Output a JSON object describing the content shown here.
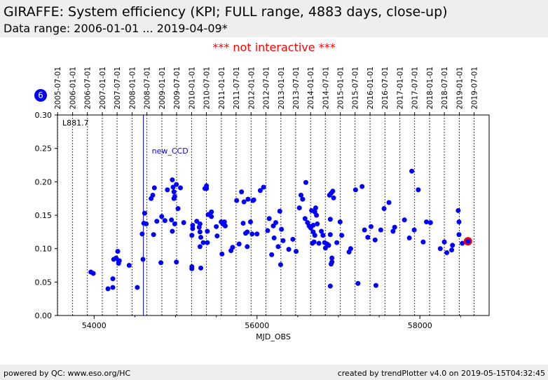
{
  "header": {
    "title": "GIRAFFE: System efficiency (KPI; FULL range, 4883 days, close-up)",
    "subtitle": "Data range: 2006-01-01 ... 2019-04-09*"
  },
  "notice": "*** not interactive ***",
  "footer": {
    "left": "powered by QC: www.eso.org/HC",
    "right": "created by trendPlotter v4.0 on 2019-05-15T04:32:45"
  },
  "colors": {
    "points": "#0000ff",
    "highlight": "#ff0000",
    "header_bg": "#eeeeee",
    "notice": "#ff0000"
  },
  "chart_data": {
    "type": "scatter",
    "xlabel": "MJD_OBS",
    "ylabel": "",
    "xlim": [
      53550,
      58850
    ],
    "ylim": [
      0.0,
      0.3
    ],
    "xticks": [
      54000,
      56000,
      58000
    ],
    "xtick_labels": [
      "54000",
      "56000",
      "58000"
    ],
    "yticks": [
      0.0,
      0.05,
      0.1,
      0.15,
      0.2,
      0.25,
      0.3
    ],
    "ytick_labels": [
      "0.00",
      "0.05",
      "0.10",
      "0.15",
      "0.20",
      "0.25",
      "0.30"
    ],
    "top_axis_dates": [
      {
        "label": "2005-07-01",
        "mjd": 53552
      },
      {
        "label": "2006-01-01",
        "mjd": 53736
      },
      {
        "label": "2006-07-01",
        "mjd": 53917
      },
      {
        "label": "2007-01-01",
        "mjd": 54101
      },
      {
        "label": "2007-07-01",
        "mjd": 54282
      },
      {
        "label": "2008-01-01",
        "mjd": 54466
      },
      {
        "label": "2008-07-01",
        "mjd": 54648
      },
      {
        "label": "2009-01-01",
        "mjd": 54832
      },
      {
        "label": "2009-07-01",
        "mjd": 55013
      },
      {
        "label": "2010-01-01",
        "mjd": 55197
      },
      {
        "label": "2010-07-01",
        "mjd": 55378
      },
      {
        "label": "2011-01-01",
        "mjd": 55562
      },
      {
        "label": "2011-07-01",
        "mjd": 55743
      },
      {
        "label": "2012-01-01",
        "mjd": 55927
      },
      {
        "label": "2012-07-01",
        "mjd": 56109
      },
      {
        "label": "2013-01-01",
        "mjd": 56293
      },
      {
        "label": "2013-07-01",
        "mjd": 56474
      },
      {
        "label": "2014-01-01",
        "mjd": 56658
      },
      {
        "label": "2014-07-01",
        "mjd": 56839
      },
      {
        "label": "2015-01-01",
        "mjd": 57023
      },
      {
        "label": "2015-07-01",
        "mjd": 57204
      },
      {
        "label": "2016-01-01",
        "mjd": 57388
      },
      {
        "label": "2016-07-01",
        "mjd": 57570
      },
      {
        "label": "2017-01-01",
        "mjd": 57754
      },
      {
        "label": "2017-07-01",
        "mjd": 57935
      },
      {
        "label": "2018-01-01",
        "mjd": 58119
      },
      {
        "label": "2018-07-01",
        "mjd": 58300
      },
      {
        "label": "2019-01-01",
        "mjd": 58484
      },
      {
        "label": "2019-07-01",
        "mjd": 58665
      }
    ],
    "corner_label": "L881.7",
    "badge": "6",
    "event": {
      "label": "new_CCD",
      "mjd": 54605
    },
    "highlight": {
      "x": 58590,
      "y": 0.111
    },
    "grid": "vertical dotted lines at top-axis dates",
    "points": [
      [
        53960,
        0.065
      ],
      [
        53990,
        0.063
      ],
      [
        54170,
        0.04
      ],
      [
        54230,
        0.042
      ],
      [
        54230,
        0.055
      ],
      [
        54240,
        0.084
      ],
      [
        54270,
        0.086
      ],
      [
        54290,
        0.096
      ],
      [
        54300,
        0.078
      ],
      [
        54300,
        0.082
      ],
      [
        54310,
        0.082
      ],
      [
        54430,
        0.075
      ],
      [
        54530,
        0.042
      ],
      [
        54590,
        0.122
      ],
      [
        54600,
        0.084
      ],
      [
        54610,
        0.138
      ],
      [
        54620,
        0.153
      ],
      [
        54640,
        0.137
      ],
      [
        54700,
        0.175
      ],
      [
        54720,
        0.18
      ],
      [
        54730,
        0.121
      ],
      [
        54740,
        0.191
      ],
      [
        54770,
        0.141
      ],
      [
        54820,
        0.079
      ],
      [
        54830,
        0.148
      ],
      [
        54870,
        0.142
      ],
      [
        54900,
        0.188
      ],
      [
        54950,
        0.143
      ],
      [
        54960,
        0.126
      ],
      [
        54960,
        0.203
      ],
      [
        54970,
        0.192
      ],
      [
        54980,
        0.175
      ],
      [
        54980,
        0.185
      ],
      [
        54990,
        0.178
      ],
      [
        54990,
        0.137
      ],
      [
        55010,
        0.196
      ],
      [
        55010,
        0.08
      ],
      [
        55030,
        0.16
      ],
      [
        55060,
        0.191
      ],
      [
        55100,
        0.139
      ],
      [
        55200,
        0.07
      ],
      [
        55200,
        0.073
      ],
      [
        55200,
        0.12
      ],
      [
        55210,
        0.13
      ],
      [
        55210,
        0.135
      ],
      [
        55260,
        0.141
      ],
      [
        55290,
        0.132
      ],
      [
        55300,
        0.137
      ],
      [
        55300,
        0.125
      ],
      [
        55300,
        0.103
      ],
      [
        55310,
        0.071
      ],
      [
        55310,
        0.117
      ],
      [
        55340,
        0.109
      ],
      [
        55360,
        0.19
      ],
      [
        55380,
        0.194
      ],
      [
        55380,
        0.19
      ],
      [
        55390,
        0.126
      ],
      [
        55390,
        0.109
      ],
      [
        55400,
        0.151
      ],
      [
        55440,
        0.155
      ],
      [
        55440,
        0.148
      ],
      [
        55500,
        0.133
      ],
      [
        55510,
        0.119
      ],
      [
        55560,
        0.14
      ],
      [
        55570,
        0.092
      ],
      [
        55580,
        0.137
      ],
      [
        55600,
        0.14
      ],
      [
        55610,
        0.134
      ],
      [
        55680,
        0.097
      ],
      [
        55700,
        0.102
      ],
      [
        55750,
        0.172
      ],
      [
        55780,
        0.107
      ],
      [
        55810,
        0.185
      ],
      [
        55830,
        0.138
      ],
      [
        55840,
        0.17
      ],
      [
        55860,
        0.123
      ],
      [
        55880,
        0.125
      ],
      [
        55880,
        0.103
      ],
      [
        55890,
        0.174
      ],
      [
        55920,
        0.14
      ],
      [
        55940,
        0.122
      ],
      [
        55950,
        0.172
      ],
      [
        55960,
        0.173
      ],
      [
        56000,
        0.122
      ],
      [
        56040,
        0.187
      ],
      [
        56080,
        0.192
      ],
      [
        56130,
        0.127
      ],
      [
        56150,
        0.145
      ],
      [
        56180,
        0.091
      ],
      [
        56200,
        0.134
      ],
      [
        56210,
        0.116
      ],
      [
        56230,
        0.139
      ],
      [
        56260,
        0.103
      ],
      [
        56280,
        0.156
      ],
      [
        56290,
        0.076
      ],
      [
        56300,
        0.129
      ],
      [
        56320,
        0.112
      ],
      [
        56390,
        0.099
      ],
      [
        56440,
        0.114
      ],
      [
        56480,
        0.096
      ],
      [
        56520,
        0.161
      ],
      [
        56540,
        0.18
      ],
      [
        56560,
        0.174
      ],
      [
        56590,
        0.145
      ],
      [
        56600,
        0.199
      ],
      [
        56620,
        0.139
      ],
      [
        56640,
        0.134
      ],
      [
        56660,
        0.131
      ],
      [
        56670,
        0.157
      ],
      [
        56680,
        0.108
      ],
      [
        56690,
        0.135
      ],
      [
        56690,
        0.125
      ],
      [
        56700,
        0.11
      ],
      [
        56710,
        0.12
      ],
      [
        56710,
        0.155
      ],
      [
        56720,
        0.161
      ],
      [
        56730,
        0.15
      ],
      [
        56740,
        0.137
      ],
      [
        56760,
        0.108
      ],
      [
        56790,
        0.126
      ],
      [
        56810,
        0.12
      ],
      [
        56830,
        0.109
      ],
      [
        56840,
        0.101
      ],
      [
        56860,
        0.107
      ],
      [
        56880,
        0.105
      ],
      [
        56890,
        0.18
      ],
      [
        56900,
        0.044
      ],
      [
        56900,
        0.121
      ],
      [
        56900,
        0.144
      ],
      [
        56910,
        0.077
      ],
      [
        56910,
        0.183
      ],
      [
        56920,
        0.08
      ],
      [
        56920,
        0.086
      ],
      [
        56930,
        0.186
      ],
      [
        56940,
        0.176
      ],
      [
        56980,
        0.109
      ],
      [
        57020,
        0.14
      ],
      [
        57040,
        0.12
      ],
      [
        57130,
        0.095
      ],
      [
        57150,
        0.1
      ],
      [
        57210,
        0.188
      ],
      [
        57240,
        0.048
      ],
      [
        57290,
        0.193
      ],
      [
        57320,
        0.128
      ],
      [
        57360,
        0.117
      ],
      [
        57400,
        0.133
      ],
      [
        57450,
        0.113
      ],
      [
        57460,
        0.045
      ],
      [
        57520,
        0.128
      ],
      [
        57560,
        0.16
      ],
      [
        57620,
        0.169
      ],
      [
        57670,
        0.126
      ],
      [
        57690,
        0.132
      ],
      [
        57810,
        0.143
      ],
      [
        57870,
        0.116
      ],
      [
        57900,
        0.216
      ],
      [
        57930,
        0.128
      ],
      [
        57980,
        0.188
      ],
      [
        58040,
        0.11
      ],
      [
        58080,
        0.14
      ],
      [
        58130,
        0.139
      ],
      [
        58250,
        0.1
      ],
      [
        58300,
        0.11
      ],
      [
        58330,
        0.094
      ],
      [
        58390,
        0.098
      ],
      [
        58400,
        0.105
      ],
      [
        58470,
        0.157
      ],
      [
        58480,
        0.14
      ],
      [
        58480,
        0.121
      ],
      [
        58520,
        0.108
      ]
    ]
  }
}
